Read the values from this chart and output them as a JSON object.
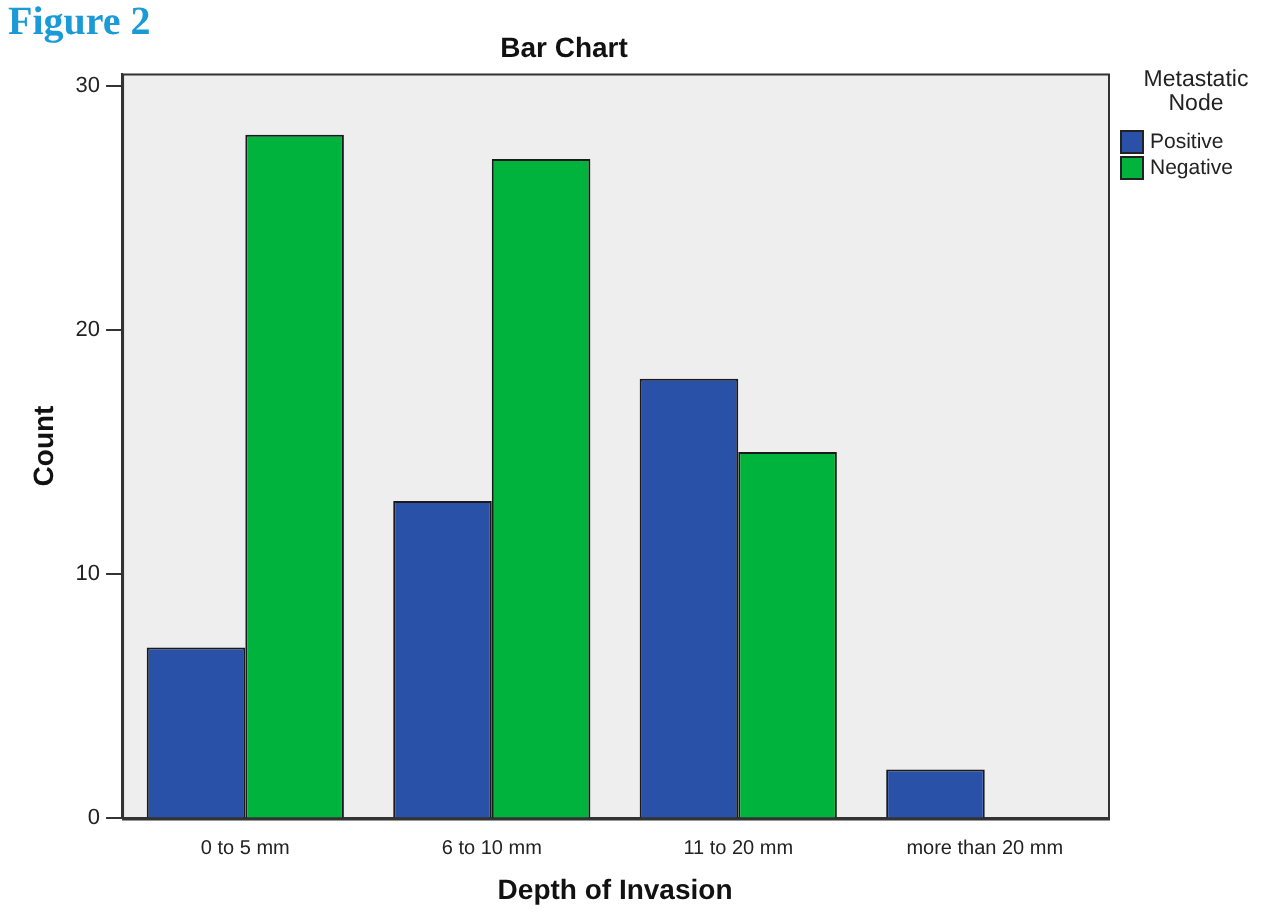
{
  "chart_data": {
    "type": "bar",
    "title": "Bar Chart",
    "xlabel": "Depth of Invasion",
    "ylabel": "Count",
    "legend_title": "Metastatic Node",
    "legend": "right",
    "annotations": [
      "Figure 2"
    ],
    "categories": [
      "0 to 5 mm",
      "6 to 10 mm",
      "11 to 20 mm",
      "more than 20 mm"
    ],
    "series": [
      {
        "name": "Positive",
        "color": "#2a51a8",
        "values": [
          7,
          13,
          18,
          2
        ]
      },
      {
        "name": "Negative",
        "color": "#00b33c",
        "values": [
          28,
          27,
          15,
          0
        ]
      }
    ],
    "ylim": [
      0,
      30.5
    ],
    "yticks": [
      0,
      10,
      20,
      30
    ],
    "grid": false
  }
}
